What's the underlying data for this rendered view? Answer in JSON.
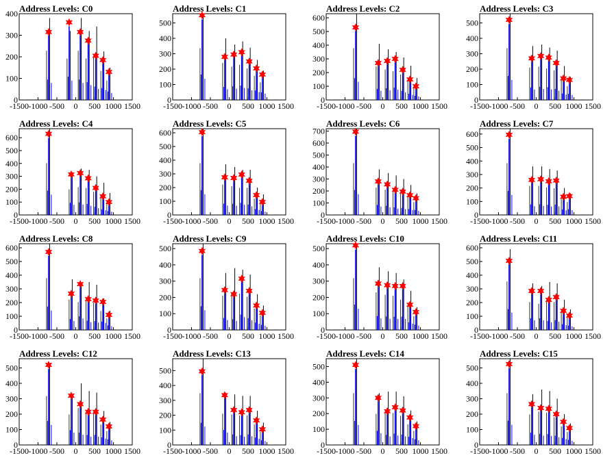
{
  "figure": {
    "background": "#ffffff",
    "rows": 4,
    "cols": 4
  },
  "style": {
    "hist_color": "#0000ff",
    "overlay_color": "#000000",
    "marker_color": "#ff0000"
  },
  "chart_data": [
    {
      "type": "histogram",
      "title": "Address Levels: C0",
      "xlim": [
        -1500,
        1500
      ],
      "ylim": [
        0,
        400
      ],
      "xticks": [
        -1500,
        -1000,
        -500,
        0,
        500,
        1000,
        1500
      ],
      "yticks": [
        0,
        100,
        200,
        300,
        400
      ],
      "peaks_x": [
        -720,
        -175,
        120,
        330,
        530,
        720,
        880
      ],
      "peak_values": [
        315,
        360,
        315,
        275,
        205,
        185,
        130
      ],
      "black_spike_values": [
        380,
        320,
        380,
        320,
        340,
        225,
        150
      ]
    },
    {
      "type": "histogram",
      "title": "Address Levels: C1",
      "xlim": [
        -1500,
        1500
      ],
      "ylim": [
        0,
        560
      ],
      "xticks": [
        -1500,
        -1000,
        -500,
        0,
        500,
        1000,
        1500
      ],
      "yticks": [
        0,
        100,
        200,
        300,
        400,
        500
      ],
      "peaks_x": [
        -720,
        -120,
        120,
        330,
        530,
        720,
        880
      ],
      "peak_values": [
        550,
        280,
        295,
        310,
        250,
        205,
        165
      ],
      "black_spike_values": [
        560,
        400,
        360,
        380,
        340,
        260,
        190
      ]
    },
    {
      "type": "histogram",
      "title": "Address Levels: C2",
      "xlim": [
        -1500,
        1500
      ],
      "ylim": [
        0,
        630
      ],
      "xticks": [
        -1500,
        -1000,
        -500,
        0,
        500,
        1000,
        1500
      ],
      "yticks": [
        0,
        100,
        200,
        300,
        400,
        500,
        600
      ],
      "peaks_x": [
        -720,
        -120,
        120,
        330,
        530,
        720,
        880
      ],
      "peak_values": [
        530,
        270,
        285,
        300,
        220,
        150,
        100
      ],
      "black_spike_values": [
        630,
        410,
        370,
        350,
        310,
        250,
        160
      ]
    },
    {
      "type": "histogram",
      "title": "Address Levels: C3",
      "xlim": [
        -1500,
        1500
      ],
      "ylim": [
        0,
        560
      ],
      "xticks": [
        -1500,
        -1000,
        -500,
        0,
        500,
        1000,
        1500
      ],
      "yticks": [
        0,
        100,
        200,
        300,
        400,
        500
      ],
      "peaks_x": [
        -720,
        -120,
        120,
        330,
        530,
        720,
        880
      ],
      "peak_values": [
        520,
        270,
        285,
        275,
        240,
        140,
        130
      ],
      "black_spike_values": [
        560,
        350,
        360,
        340,
        320,
        220,
        150
      ]
    },
    {
      "type": "histogram",
      "title": "Address Levels: C4",
      "xlim": [
        -1500,
        1500
      ],
      "ylim": [
        0,
        670
      ],
      "xticks": [
        -1500,
        -1000,
        -500,
        0,
        500,
        1000,
        1500
      ],
      "yticks": [
        0,
        100,
        200,
        300,
        400,
        500,
        600
      ],
      "peaks_x": [
        -720,
        -120,
        120,
        330,
        530,
        720,
        880
      ],
      "peak_values": [
        630,
        315,
        325,
        285,
        210,
        145,
        100
      ],
      "black_spike_values": [
        670,
        330,
        360,
        350,
        300,
        250,
        170
      ]
    },
    {
      "type": "histogram",
      "title": "Address Levels: C5",
      "xlim": [
        -1500,
        1500
      ],
      "ylim": [
        0,
        630
      ],
      "xticks": [
        -1500,
        -1000,
        -500,
        0,
        500,
        1000,
        1500
      ],
      "yticks": [
        0,
        100,
        200,
        300,
        400,
        500,
        600
      ],
      "peaks_x": [
        -720,
        -120,
        120,
        330,
        530,
        720,
        880
      ],
      "peak_values": [
        605,
        275,
        270,
        295,
        250,
        145,
        95
      ],
      "black_spike_values": [
        630,
        370,
        350,
        330,
        330,
        200,
        150
      ]
    },
    {
      "type": "histogram",
      "title": "Address Levels: C6",
      "xlim": [
        -1500,
        1500
      ],
      "ylim": [
        0,
        720
      ],
      "xticks": [
        -1500,
        -1000,
        -500,
        0,
        500,
        1000,
        1500
      ],
      "yticks": [
        0,
        100,
        200,
        300,
        400,
        500,
        600,
        700
      ],
      "peaks_x": [
        -720,
        -120,
        120,
        330,
        530,
        720,
        880
      ],
      "peak_values": [
        695,
        280,
        255,
        210,
        195,
        165,
        140
      ],
      "black_spike_values": [
        720,
        380,
        350,
        330,
        300,
        250,
        180
      ]
    },
    {
      "type": "histogram",
      "title": "Address Levels: C7",
      "xlim": [
        -1500,
        1500
      ],
      "ylim": [
        0,
        640
      ],
      "xticks": [
        -1500,
        -1000,
        -500,
        0,
        500,
        1000,
        1500
      ],
      "yticks": [
        0,
        100,
        200,
        300,
        400,
        500,
        600
      ],
      "peaks_x": [
        -720,
        -120,
        120,
        330,
        530,
        720,
        880
      ],
      "peak_values": [
        595,
        260,
        265,
        250,
        255,
        135,
        140
      ],
      "black_spike_values": [
        640,
        360,
        360,
        340,
        330,
        200,
        160
      ]
    },
    {
      "type": "histogram",
      "title": "Address Levels: C8",
      "xlim": [
        -1500,
        1500
      ],
      "ylim": [
        0,
        630
      ],
      "xticks": [
        -1500,
        -1000,
        -500,
        0,
        500,
        1000,
        1500
      ],
      "yticks": [
        0,
        100,
        200,
        300,
        400,
        500,
        600
      ],
      "peaks_x": [
        -720,
        -120,
        120,
        330,
        530,
        720,
        880
      ],
      "peak_values": [
        570,
        265,
        335,
        225,
        215,
        205,
        110
      ],
      "black_spike_values": [
        630,
        370,
        340,
        350,
        330,
        230,
        140
      ]
    },
    {
      "type": "histogram",
      "title": "Address Levels: C9",
      "xlim": [
        -1500,
        1500
      ],
      "ylim": [
        0,
        530
      ],
      "xticks": [
        -1500,
        -1000,
        -500,
        0,
        500,
        1000,
        1500
      ],
      "yticks": [
        0,
        100,
        200,
        300,
        400,
        500
      ],
      "peaks_x": [
        -720,
        -120,
        120,
        330,
        530,
        720,
        880
      ],
      "peak_values": [
        485,
        245,
        220,
        315,
        240,
        150,
        105
      ],
      "black_spike_values": [
        530,
        350,
        380,
        370,
        340,
        220,
        150
      ]
    },
    {
      "type": "histogram",
      "title": "Address Levels: C10",
      "xlim": [
        -1500,
        1500
      ],
      "ylim": [
        0,
        530
      ],
      "xticks": [
        -1500,
        -1000,
        -500,
        0,
        500,
        1000,
        1500
      ],
      "yticks": [
        0,
        100,
        200,
        300,
        400,
        500
      ],
      "peaks_x": [
        -720,
        -120,
        120,
        330,
        530,
        720,
        880
      ],
      "peak_values": [
        520,
        285,
        275,
        270,
        270,
        155,
        110
      ],
      "black_spike_values": [
        530,
        385,
        360,
        350,
        310,
        240,
        140
      ]
    },
    {
      "type": "histogram",
      "title": "Address Levels: C11",
      "xlim": [
        -1500,
        1500
      ],
      "ylim": [
        0,
        630
      ],
      "xticks": [
        -1500,
        -1000,
        -500,
        0,
        500,
        1000,
        1500
      ],
      "yticks": [
        0,
        100,
        200,
        300,
        400,
        500,
        600
      ],
      "peaks_x": [
        -720,
        -120,
        120,
        330,
        530,
        720,
        880
      ],
      "peak_values": [
        505,
        285,
        285,
        220,
        240,
        140,
        105
      ],
      "black_spike_values": [
        590,
        340,
        320,
        350,
        340,
        220,
        150
      ]
    },
    {
      "type": "histogram",
      "title": "Address Levels: C12",
      "xlim": [
        -1500,
        1500
      ],
      "ylim": [
        0,
        560
      ],
      "xticks": [
        -1500,
        -1000,
        -500,
        0,
        500,
        1000,
        1500
      ],
      "yticks": [
        0,
        100,
        200,
        300,
        400,
        500
      ],
      "peaks_x": [
        -720,
        -120,
        120,
        330,
        530,
        720,
        880
      ],
      "peak_values": [
        520,
        320,
        265,
        215,
        215,
        165,
        120
      ],
      "black_spike_values": [
        530,
        330,
        400,
        350,
        340,
        220,
        150
      ]
    },
    {
      "type": "histogram",
      "title": "Address Levels: C13",
      "xlim": [
        -1500,
        1500
      ],
      "ylim": [
        0,
        580
      ],
      "xticks": [
        -1500,
        -1000,
        -500,
        0,
        500,
        1000,
        1500
      ],
      "yticks": [
        0,
        100,
        200,
        300,
        400,
        500
      ],
      "peaks_x": [
        -720,
        -120,
        120,
        330,
        530,
        720,
        880
      ],
      "peak_values": [
        495,
        335,
        235,
        220,
        235,
        165,
        105
      ],
      "black_spike_values": [
        580,
        350,
        340,
        330,
        330,
        230,
        150
      ]
    },
    {
      "type": "histogram",
      "title": "Address Levels: C14",
      "xlim": [
        -1500,
        1500
      ],
      "ylim": [
        0,
        550
      ],
      "xticks": [
        -1500,
        -1000,
        -500,
        0,
        500,
        1000,
        1500
      ],
      "yticks": [
        0,
        100,
        200,
        300,
        400,
        500
      ],
      "peaks_x": [
        -720,
        -120,
        120,
        330,
        530,
        720,
        880
      ],
      "peak_values": [
        510,
        300,
        215,
        240,
        220,
        175,
        120
      ],
      "black_spike_values": [
        550,
        330,
        340,
        340,
        310,
        220,
        150
      ]
    },
    {
      "type": "histogram",
      "title": "Address Levels: C15",
      "xlim": [
        -1500,
        1500
      ],
      "ylim": [
        0,
        560
      ],
      "xticks": [
        -1500,
        -1000,
        -500,
        0,
        500,
        1000,
        1500
      ],
      "yticks": [
        0,
        100,
        200,
        300,
        400,
        500
      ],
      "peaks_x": [
        -720,
        -120,
        120,
        330,
        530,
        720,
        880
      ],
      "peak_values": [
        525,
        265,
        240,
        235,
        200,
        150,
        110
      ],
      "black_spike_values": [
        560,
        330,
        360,
        350,
        300,
        200,
        140
      ]
    }
  ]
}
